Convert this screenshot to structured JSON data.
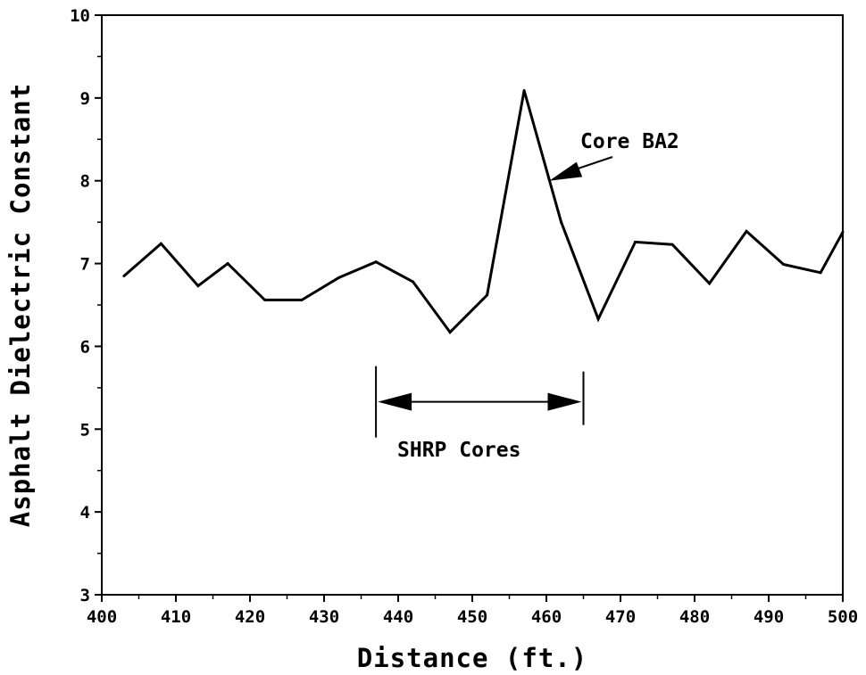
{
  "chart_data": {
    "type": "line",
    "title": "",
    "xlabel": "Distance (ft.)",
    "ylabel": "Asphalt Dielectric Constant",
    "xlim": [
      400,
      500
    ],
    "ylim": [
      3,
      10
    ],
    "xticks": [
      400,
      410,
      420,
      430,
      440,
      450,
      460,
      470,
      480,
      490,
      500
    ],
    "yticks": [
      3,
      4,
      5,
      6,
      7,
      8,
      9,
      10
    ],
    "grid": false,
    "series": [
      {
        "name": "",
        "x": [
          403,
          408,
          413,
          417,
          422,
          427,
          432,
          437,
          442,
          447,
          452,
          457,
          462,
          467,
          472,
          477,
          482,
          487,
          492,
          497,
          500
        ],
        "y": [
          6.85,
          7.24,
          6.73,
          7.0,
          6.56,
          6.56,
          6.83,
          7.02,
          6.78,
          6.17,
          6.62,
          9.09,
          7.5,
          6.33,
          7.26,
          7.23,
          6.76,
          7.39,
          6.99,
          6.89,
          7.38
        ]
      }
    ],
    "annotations": [
      {
        "text": "Core BA2",
        "points_to": {
          "x": 460.4,
          "y": 8.0
        }
      },
      {
        "text": "SHRP Cores",
        "range": {
          "x_start": 437,
          "x_end": 465
        },
        "y": 5.33
      }
    ]
  }
}
